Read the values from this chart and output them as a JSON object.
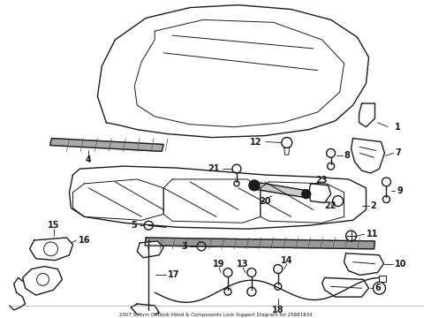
{
  "title": "2007 Saturn Outlook Hood & Components Lock Support Diagram for 25881834",
  "background_color": "#ffffff",
  "line_color": "#1a1a1a",
  "fig_width": 4.89,
  "fig_height": 3.6,
  "dpi": 100
}
